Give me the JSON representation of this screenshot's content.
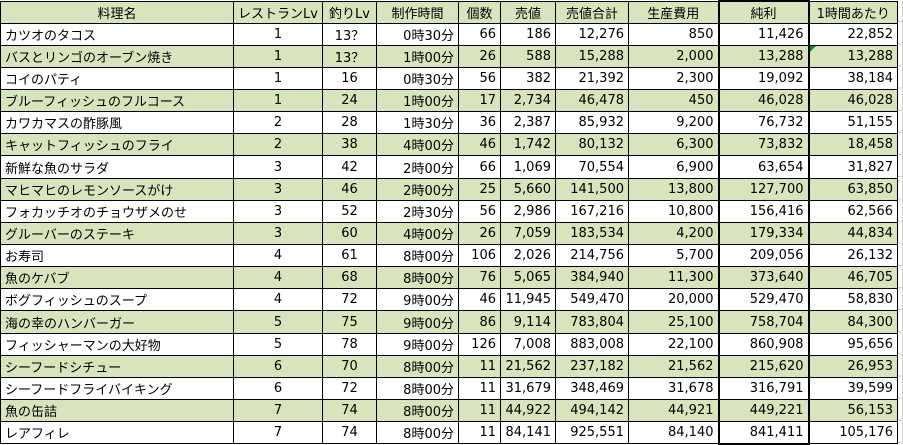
{
  "colors": {
    "row_stripe_green": "#d8e4bc",
    "grid_line": "#000000",
    "faint_gridline": "#d4d4d4",
    "error_indicator_green": "#1a8a1a"
  },
  "table": {
    "columns": [
      {
        "key": "name",
        "label": "料理名"
      },
      {
        "key": "restaurant_lv",
        "label": "レストランLv"
      },
      {
        "key": "fishing_lv",
        "label": "釣りLv"
      },
      {
        "key": "craft_time",
        "label": "制作時間"
      },
      {
        "key": "count",
        "label": "個数"
      },
      {
        "key": "sell_price",
        "label": "売値"
      },
      {
        "key": "sell_total",
        "label": "売値合計"
      },
      {
        "key": "production_cost",
        "label": "生産費用"
      },
      {
        "key": "net_profit",
        "label": "純利"
      },
      {
        "key": "per_hour",
        "label": "1時間あたり"
      }
    ],
    "rows": [
      {
        "cells": [
          "カツオのタコス",
          "1",
          "13？",
          "0時30分",
          "66",
          "186",
          "12,276",
          "850",
          "11,426",
          "22,852"
        ],
        "shaded": false,
        "error_indicator_col": null
      },
      {
        "cells": [
          "バスとリンゴのオーブン焼き",
          "1",
          "13？",
          "1時00分",
          "26",
          "588",
          "15,288",
          "2,000",
          "13,288",
          "13,288"
        ],
        "shaded": true,
        "error_indicator_col": 9
      },
      {
        "cells": [
          "コイのパティ",
          "1",
          "16",
          "0時30分",
          "56",
          "382",
          "21,392",
          "2,300",
          "19,092",
          "38,184"
        ],
        "shaded": false,
        "error_indicator_col": null
      },
      {
        "cells": [
          "ブルーフィッシュのフルコース",
          "1",
          "24",
          "1時00分",
          "17",
          "2,734",
          "46,478",
          "450",
          "46,028",
          "46,028"
        ],
        "shaded": true,
        "error_indicator_col": null
      },
      {
        "cells": [
          "カワカマスの酢豚風",
          "2",
          "28",
          "1時30分",
          "36",
          "2,387",
          "85,932",
          "9,200",
          "76,732",
          "51,155"
        ],
        "shaded": false,
        "error_indicator_col": null
      },
      {
        "cells": [
          "キャットフィッシュのフライ",
          "2",
          "38",
          "4時00分",
          "46",
          "1,742",
          "80,132",
          "6,300",
          "73,832",
          "18,458"
        ],
        "shaded": true,
        "error_indicator_col": null
      },
      {
        "cells": [
          "新鮮な魚のサラダ",
          "3",
          "42",
          "2時00分",
          "66",
          "1,069",
          "70,554",
          "6,900",
          "63,654",
          "31,827"
        ],
        "shaded": false,
        "error_indicator_col": null
      },
      {
        "cells": [
          "マヒマヒのレモンソースがけ",
          "3",
          "46",
          "2時00分",
          "25",
          "5,660",
          "141,500",
          "13,800",
          "127,700",
          "63,850"
        ],
        "shaded": true,
        "error_indicator_col": null
      },
      {
        "cells": [
          "フォカッチオのチョウザメのせ",
          "3",
          "52",
          "2時30分",
          "56",
          "2,986",
          "167,216",
          "10,800",
          "156,416",
          "62,566"
        ],
        "shaded": false,
        "error_indicator_col": null
      },
      {
        "cells": [
          "グルーバーのステーキ",
          "3",
          "60",
          "4時00分",
          "26",
          "7,059",
          "183,534",
          "4,200",
          "179,334",
          "44,834"
        ],
        "shaded": true,
        "error_indicator_col": null
      },
      {
        "cells": [
          "お寿司",
          "4",
          "61",
          "8時00分",
          "106",
          "2,026",
          "214,756",
          "5,700",
          "209,056",
          "26,132"
        ],
        "shaded": false,
        "error_indicator_col": null
      },
      {
        "cells": [
          "魚のケバブ",
          "4",
          "68",
          "8時00分",
          "76",
          "5,065",
          "384,940",
          "11,300",
          "373,640",
          "46,705"
        ],
        "shaded": true,
        "error_indicator_col": null
      },
      {
        "cells": [
          "ボグフィッシュのスープ",
          "4",
          "72",
          "9時00分",
          "46",
          "11,945",
          "549,470",
          "20,000",
          "529,470",
          "58,830"
        ],
        "shaded": false,
        "error_indicator_col": null
      },
      {
        "cells": [
          "海の幸のハンバーガー",
          "5",
          "75",
          "9時00分",
          "86",
          "9,114",
          "783,804",
          "25,100",
          "758,704",
          "84,300"
        ],
        "shaded": true,
        "error_indicator_col": null
      },
      {
        "cells": [
          "フィッシャーマンの大好物",
          "5",
          "78",
          "9時00分",
          "126",
          "7,008",
          "883,008",
          "22,100",
          "860,908",
          "95,656"
        ],
        "shaded": false,
        "error_indicator_col": null
      },
      {
        "cells": [
          "シーフードシチュー",
          "6",
          "70",
          "8時00分",
          "11",
          "21,562",
          "237,182",
          "21,562",
          "215,620",
          "26,953"
        ],
        "shaded": true,
        "error_indicator_col": null
      },
      {
        "cells": [
          "シーフードフライバイキング",
          "6",
          "72",
          "8時00分",
          "11",
          "31,679",
          "348,469",
          "31,678",
          "316,791",
          "39,599"
        ],
        "shaded": false,
        "error_indicator_col": null
      },
      {
        "cells": [
          "魚の缶詰",
          "7",
          "74",
          "8時00分",
          "11",
          "44,922",
          "494,142",
          "44,921",
          "449,221",
          "56,153"
        ],
        "shaded": true,
        "error_indicator_col": null
      },
      {
        "cells": [
          "レアフィレ",
          "7",
          "74",
          "8時00分",
          "11",
          "84,141",
          "925,551",
          "84,140",
          "841,411",
          "105,176"
        ],
        "shaded": false,
        "error_indicator_col": null
      }
    ]
  }
}
